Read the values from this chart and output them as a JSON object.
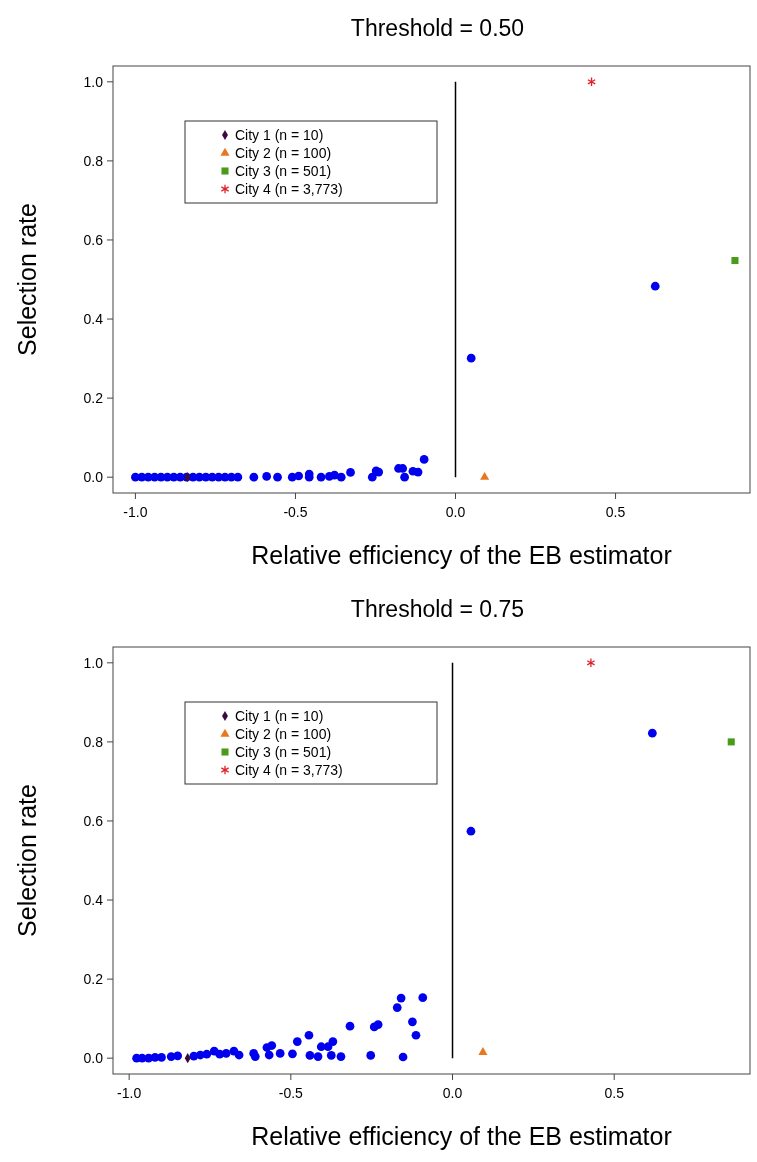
{
  "chart_data": [
    {
      "type": "scatter",
      "title": "Threshold = 0.50",
      "xlabel": "Relative efficiency of the EB estimator",
      "ylabel": "Selection rate",
      "xlim": [
        -1.07,
        0.92
      ],
      "ylim": [
        -0.04,
        1.04
      ],
      "xticks": [
        {
          "value": -1,
          "label": "-1.0"
        },
        {
          "value": -0.5,
          "label": "-0.5"
        },
        {
          "value": 0,
          "label": "0.0"
        },
        {
          "value": 0.5,
          "label": "0.5"
        }
      ],
      "yticks": [
        {
          "value": 0,
          "label": "0.0"
        },
        {
          "value": 0.2,
          "label": "0.2"
        },
        {
          "value": 0.4,
          "label": "0.4"
        },
        {
          "value": 0.6,
          "label": "0.6"
        },
        {
          "value": 0.8,
          "label": "0.8"
        },
        {
          "value": 1,
          "label": "1.0"
        }
      ],
      "grid": false,
      "legend": "top left",
      "ref_lines": [
        {
          "axis": "x",
          "value": 0,
          "color": "#000000"
        }
      ],
      "series": [
        {
          "color": "#0000ee",
          "marker": "circle",
          "x": [
            -1.0,
            -0.98,
            -0.96,
            -0.94,
            -0.92,
            -0.9,
            -0.88,
            -0.86,
            -0.84,
            -0.82,
            -0.8,
            -0.78,
            -0.76,
            -0.74,
            -0.72,
            -0.7,
            -0.68,
            -0.63,
            -0.59,
            -0.556,
            -0.51,
            -0.49,
            -0.457,
            -0.457,
            -0.42,
            -0.394,
            -0.378,
            -0.357,
            -0.328,
            -0.26,
            -0.248,
            -0.24,
            -0.178,
            -0.165,
            -0.159,
            -0.133,
            -0.117,
            -0.098,
            0.049,
            0.624
          ],
          "values": [
            0,
            0,
            0,
            0,
            0,
            0,
            0,
            0,
            0,
            0,
            0,
            0,
            0,
            0,
            0,
            0,
            0,
            0,
            0.002,
            0,
            0,
            0.003,
            0.008,
            0,
            0,
            0.002,
            0.005,
            0,
            0.012,
            0,
            0.016,
            0.013,
            0.022,
            0.022,
            0,
            0.015,
            0.013,
            0.045,
            0.301,
            0.483
          ]
        },
        {
          "name": "City 1 (n = 10)",
          "color": "#3b0a3b",
          "marker": "diamond",
          "x": [
            -0.838
          ],
          "values": [
            0
          ]
        },
        {
          "name": "City 2 (n = 100)",
          "color": "#e87722",
          "marker": "triangle",
          "x": [
            0.091
          ],
          "values": [
            0
          ]
        },
        {
          "name": "City 3 (n = 501)",
          "color": "#4c9a1a",
          "marker": "square",
          "x": [
            0.873
          ],
          "values": [
            0.548
          ]
        },
        {
          "name": "City 4 (n = 3,773)",
          "color": "#e0202a",
          "marker": "cross",
          "x": [
            0.425
          ],
          "values": [
            1.0
          ]
        }
      ]
    },
    {
      "type": "scatter",
      "title": "Threshold = 0.75",
      "xlabel": "Relative efficiency of the EB estimator",
      "ylabel": "Selection rate",
      "xlim": [
        -1.05,
        0.92
      ],
      "ylim": [
        -0.04,
        1.04
      ],
      "xticks": [
        {
          "value": -1,
          "label": "-1.0"
        },
        {
          "value": -0.5,
          "label": "-0.5"
        },
        {
          "value": 0,
          "label": "0.0"
        },
        {
          "value": 0.5,
          "label": "0.5"
        }
      ],
      "yticks": [
        {
          "value": 0,
          "label": "0.0"
        },
        {
          "value": 0.2,
          "label": "0.2"
        },
        {
          "value": 0.4,
          "label": "0.4"
        },
        {
          "value": 0.6,
          "label": "0.6"
        },
        {
          "value": 0.8,
          "label": "0.8"
        },
        {
          "value": 1,
          "label": "1.0"
        }
      ],
      "grid": false,
      "legend": "top left",
      "ref_lines": [
        {
          "axis": "x",
          "value": 0,
          "color": "#000000"
        }
      ],
      "series": [
        {
          "color": "#0000ee",
          "marker": "circle",
          "x": [
            -0.977,
            -0.96,
            -0.94,
            -0.92,
            -0.9,
            -0.87,
            -0.85,
            -0.8,
            -0.78,
            -0.76,
            -0.737,
            -0.72,
            -0.7,
            -0.676,
            -0.66,
            -0.615,
            -0.61,
            -0.574,
            -0.567,
            -0.559,
            -0.533,
            -0.495,
            -0.48,
            -0.444,
            -0.441,
            -0.416,
            -0.406,
            -0.385,
            -0.375,
            -0.37,
            -0.345,
            -0.317,
            -0.253,
            -0.242,
            -0.23,
            -0.171,
            -0.159,
            -0.153,
            -0.124,
            -0.113,
            -0.092,
            0.057,
            0.618
          ],
          "values": [
            0,
            0,
            0,
            0.002,
            0.002,
            0.004,
            0.006,
            0.005,
            0.008,
            0.01,
            0.018,
            0.01,
            0.012,
            0.018,
            0.008,
            0.012,
            0.004,
            0.027,
            0.008,
            0.032,
            0.012,
            0.011,
            0.042,
            0.058,
            0.007,
            0.004,
            0.029,
            0.029,
            0.007,
            0.042,
            0.004,
            0.081,
            0.007,
            0.079,
            0.085,
            0.128,
            0.152,
            0.003,
            0.092,
            0.058,
            0.153,
            0.574,
            0.822
          ]
        },
        {
          "name": "City 1 (n = 10)",
          "color": "#3b0a3b",
          "marker": "diamond",
          "x": [
            -0.819
          ],
          "values": [
            0
          ]
        },
        {
          "name": "City 2 (n = 100)",
          "color": "#e87722",
          "marker": "triangle",
          "x": [
            0.094
          ],
          "values": [
            0.015
          ]
        },
        {
          "name": "City 3 (n = 501)",
          "color": "#4c9a1a",
          "marker": "square",
          "x": [
            0.862
          ],
          "values": [
            0.8
          ]
        },
        {
          "name": "City 4 (n = 3,773)",
          "color": "#e0202a",
          "marker": "cross",
          "x": [
            0.428
          ],
          "values": [
            1.0
          ]
        }
      ]
    }
  ]
}
